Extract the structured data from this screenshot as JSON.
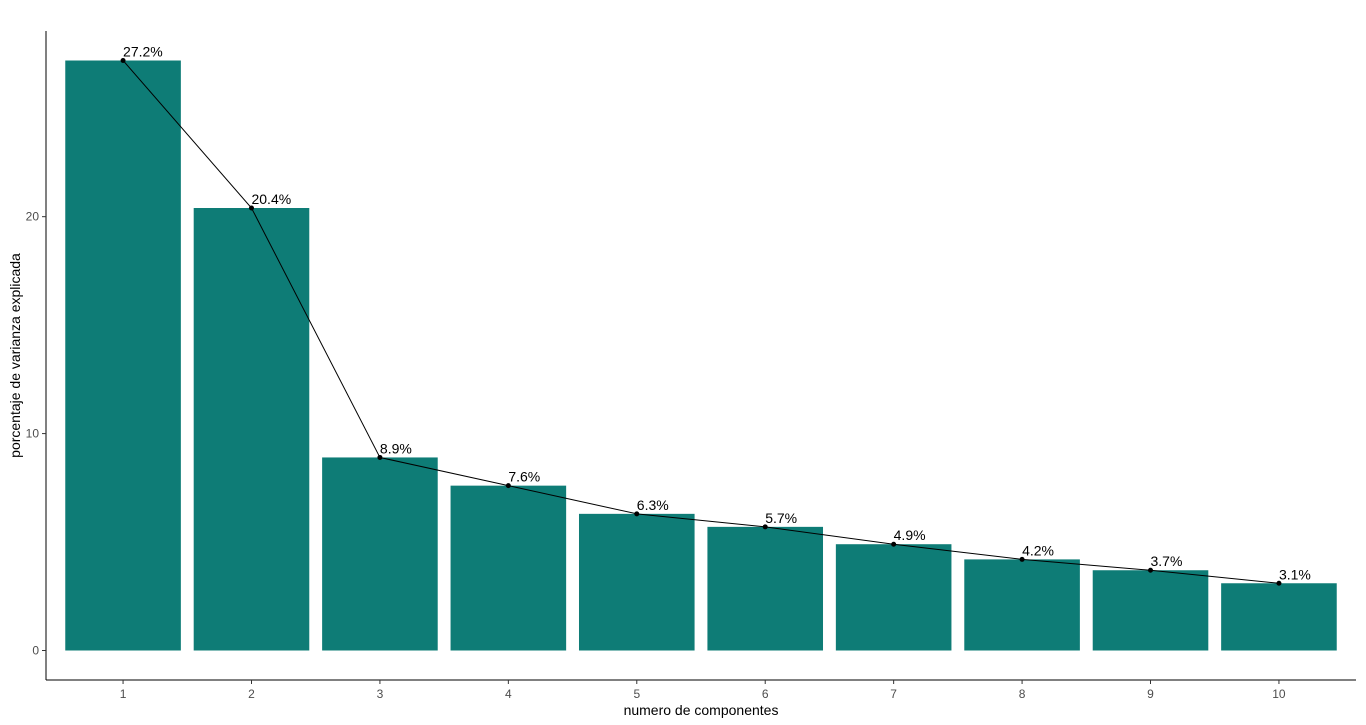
{
  "chart_data": {
    "type": "bar",
    "categories": [
      "1",
      "2",
      "3",
      "4",
      "5",
      "6",
      "7",
      "8",
      "9",
      "10"
    ],
    "values": [
      27.2,
      20.4,
      8.9,
      7.6,
      6.3,
      5.7,
      4.9,
      4.2,
      3.7,
      3.1
    ],
    "data_labels": [
      "27.2%",
      "20.4%",
      "8.9%",
      "7.6%",
      "6.3%",
      "5.7%",
      "4.9%",
      "4.2%",
      "3.7%",
      "3.1%"
    ],
    "overlay": "line-with-points",
    "xlabel": "numero de componentes",
    "ylabel": "porcentaje de varianza explicada",
    "y_ticks": [
      0,
      10,
      20
    ],
    "y_tick_labels": [
      "0",
      "10",
      "20"
    ],
    "ylim": [
      -1.36,
      28.56
    ],
    "grid": false,
    "legend": "none",
    "bar_color": "#0e7c76",
    "line_color": "#000000"
  }
}
